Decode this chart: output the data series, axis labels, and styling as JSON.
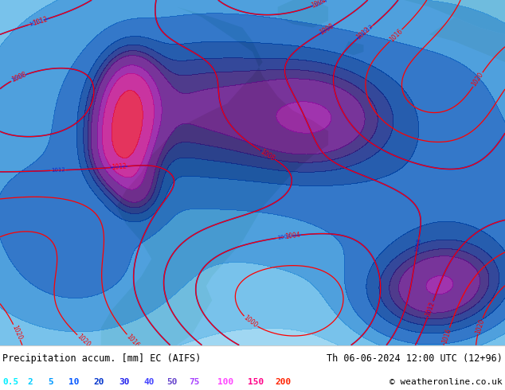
{
  "title_left": "Precipitation accum. [mm] EC (AIFS)",
  "title_right": "Th 06-06-2024 12:00 UTC (12+96)",
  "copyright": "© weatheronline.co.uk",
  "legend_values": [
    "0.5",
    "2",
    "5",
    "10",
    "20",
    "30",
    "40",
    "50",
    "75",
    "100",
    "150",
    "200"
  ],
  "legend_colors": [
    "#00eeff",
    "#00ccff",
    "#0099ff",
    "#0055ff",
    "#0033cc",
    "#2222ee",
    "#4444ff",
    "#6644cc",
    "#aa44ff",
    "#ff44ff",
    "#ff0088",
    "#ff2200"
  ],
  "precip_fill_colors": [
    "#c8eeff",
    "#99ddff",
    "#66ccff",
    "#44aaff",
    "#2288ff",
    "#1155ee",
    "#2233cc",
    "#4422bb",
    "#7711cc",
    "#cc22cc",
    "#ff2288",
    "#dd1100"
  ],
  "bg_color": "#ffffff",
  "ocean_color": "#b8e0f0",
  "land_dry_color": "#d4e8c0",
  "fig_width": 6.34,
  "fig_height": 4.9,
  "dpi": 100,
  "bottom_bar_height": 0.115
}
